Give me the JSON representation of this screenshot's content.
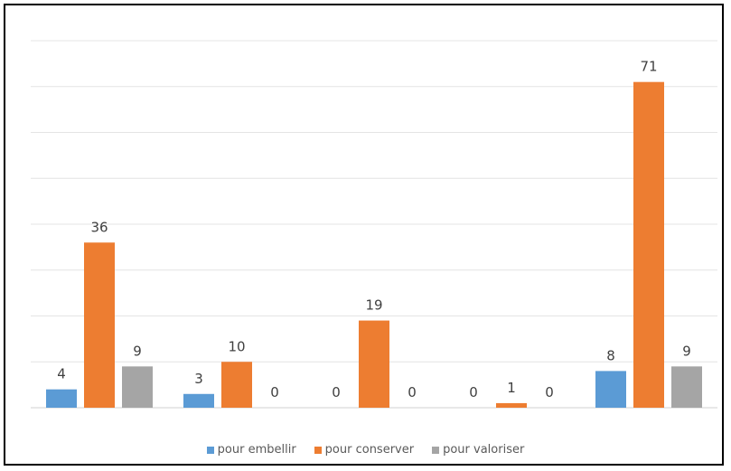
{
  "chart_data": {
    "type": "bar",
    "categories": [
      "",
      "",
      "",
      "",
      ""
    ],
    "series": [
      {
        "name": "pour embellir",
        "color": "#5b9bd5",
        "values": [
          4,
          3,
          0,
          0,
          8
        ]
      },
      {
        "name": "pour conserver",
        "color": "#ed7d31",
        "values": [
          36,
          10,
          19,
          1,
          71
        ]
      },
      {
        "name": "pour valoriser",
        "color": "#a5a5a5",
        "values": [
          9,
          0,
          0,
          0,
          9
        ]
      }
    ],
    "ylim": [
      0,
      80
    ],
    "grid": true,
    "legend_position": "bottom",
    "title": "",
    "xlabel": "",
    "ylabel": ""
  }
}
